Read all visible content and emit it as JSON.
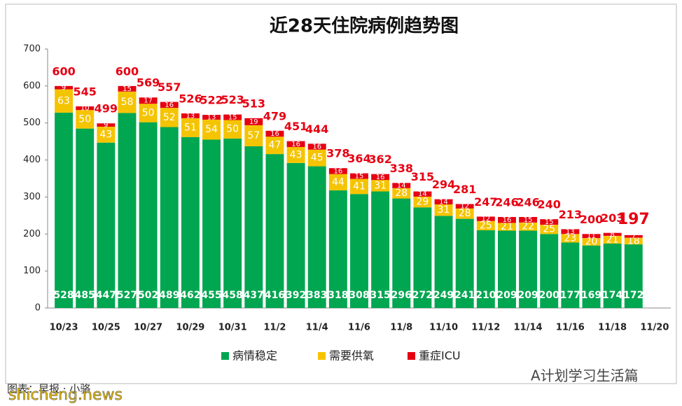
{
  "chart_data": {
    "type": "stacked_bar",
    "title": "近28天住院病例趋势图",
    "categories": [
      "10/23",
      null,
      "10/25",
      null,
      "10/27",
      null,
      "10/29",
      null,
      "10/31",
      null,
      "11/2",
      null,
      "11/4",
      null,
      "11/6",
      null,
      "11/8",
      null,
      "11/10",
      null,
      "11/12",
      null,
      "11/14",
      null,
      "11/16",
      null,
      "11/18",
      null,
      "11/20"
    ],
    "series": [
      {
        "name": "病情稳定",
        "color": "#00a650",
        "values": [
          528,
          485,
          447,
          527,
          502,
          489,
          462,
          455,
          458,
          437,
          416,
          392,
          383,
          318,
          308,
          315,
          296,
          272,
          249,
          241,
          210,
          209,
          209,
          200,
          177,
          169,
          174,
          172,
          null
        ]
      },
      {
        "name": "需要供氧",
        "color": "#f5c400",
        "values": [
          63,
          50,
          43,
          58,
          50,
          52,
          51,
          54,
          50,
          57,
          47,
          43,
          45,
          44,
          41,
          31,
          28,
          29,
          31,
          28,
          25,
          21,
          22,
          25,
          23,
          20,
          21,
          18,
          null
        ]
      },
      {
        "name": "重症ICU",
        "color": "#e60012",
        "values": [
          9,
          10,
          9,
          15,
          17,
          16,
          13,
          13,
          15,
          19,
          16,
          16,
          16,
          16,
          15,
          16,
          14,
          14,
          14,
          12,
          12,
          16,
          15,
          15,
          13,
          11,
          8,
          7,
          null
        ]
      }
    ],
    "totals": [
      600,
      545,
      499,
      600,
      569,
      557,
      526,
      522,
      523,
      513,
      479,
      451,
      444,
      378,
      364,
      362,
      338,
      315,
      294,
      281,
      247,
      246,
      246,
      240,
      213,
      200,
      203,
      197,
      null
    ],
    "ylim": [
      0,
      700
    ],
    "yticks": [
      0,
      100,
      200,
      300,
      400,
      500,
      600,
      700
    ],
    "source": "图表：早报 · 小骆",
    "watermark": "A计划学习生活篇",
    "site": "shicheng.news"
  }
}
